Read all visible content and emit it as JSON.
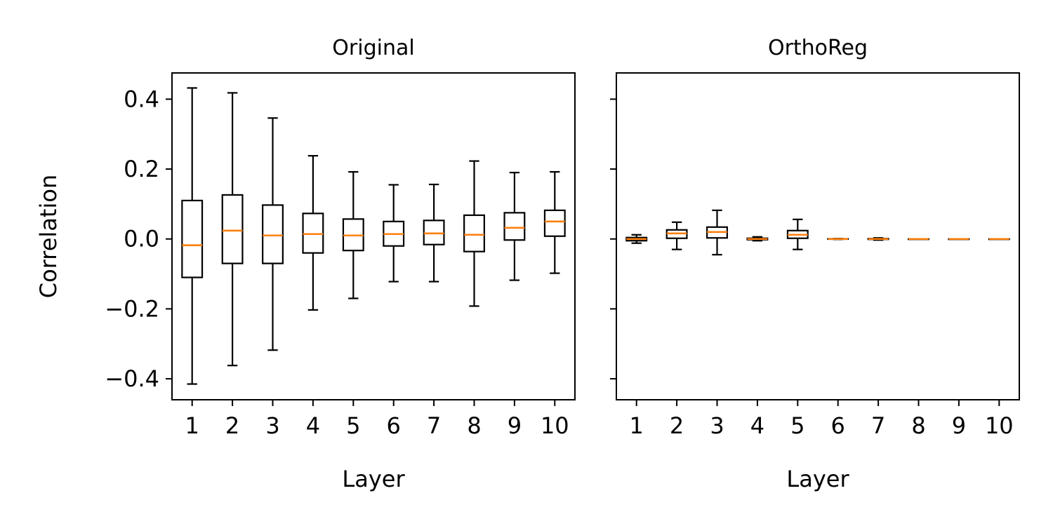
{
  "colors": {
    "box": "#000000",
    "median": "#ff7f0e",
    "frame": "#000000"
  },
  "y_ticks": [
    {
      "value": 0.4,
      "label": "0.4"
    },
    {
      "value": 0.2,
      "label": "0.2"
    },
    {
      "value": 0.0,
      "label": "0.0"
    },
    {
      "value": -0.2,
      "label": "−0.2"
    },
    {
      "value": -0.4,
      "label": "−0.4"
    }
  ],
  "chart_data": [
    {
      "type": "box",
      "title": "Original",
      "xlabel": "Layer",
      "ylabel": "Correlation",
      "ylim": [
        -0.46,
        0.475
      ],
      "show_y_tick_labels": true,
      "categories": [
        "1",
        "2",
        "3",
        "4",
        "5",
        "6",
        "7",
        "8",
        "9",
        "10"
      ],
      "boxes": [
        {
          "whisker_low": -0.415,
          "q1": -0.11,
          "median": -0.018,
          "q3": 0.11,
          "whisker_high": 0.432
        },
        {
          "whisker_low": -0.362,
          "q1": -0.07,
          "median": 0.024,
          "q3": 0.126,
          "whisker_high": 0.418
        },
        {
          "whisker_low": -0.318,
          "q1": -0.07,
          "median": 0.01,
          "q3": 0.097,
          "whisker_high": 0.346
        },
        {
          "whisker_low": -0.203,
          "q1": -0.04,
          "median": 0.014,
          "q3": 0.073,
          "whisker_high": 0.238
        },
        {
          "whisker_low": -0.17,
          "q1": -0.033,
          "median": 0.01,
          "q3": 0.057,
          "whisker_high": 0.192
        },
        {
          "whisker_low": -0.122,
          "q1": -0.02,
          "median": 0.014,
          "q3": 0.05,
          "whisker_high": 0.155
        },
        {
          "whisker_low": -0.122,
          "q1": -0.016,
          "median": 0.016,
          "q3": 0.053,
          "whisker_high": 0.156
        },
        {
          "whisker_low": -0.192,
          "q1": -0.036,
          "median": 0.012,
          "q3": 0.068,
          "whisker_high": 0.223
        },
        {
          "whisker_low": -0.118,
          "q1": -0.003,
          "median": 0.032,
          "q3": 0.075,
          "whisker_high": 0.19
        },
        {
          "whisker_low": -0.098,
          "q1": 0.008,
          "median": 0.05,
          "q3": 0.082,
          "whisker_high": 0.192
        }
      ]
    },
    {
      "type": "box",
      "title": "OrthoReg",
      "xlabel": "Layer",
      "ylabel": "",
      "ylim": [
        -0.46,
        0.475
      ],
      "show_y_tick_labels": false,
      "categories": [
        "1",
        "2",
        "3",
        "4",
        "5",
        "6",
        "7",
        "8",
        "9",
        "10"
      ],
      "boxes": [
        {
          "whisker_low": -0.012,
          "q1": -0.005,
          "median": 0.0,
          "q3": 0.004,
          "whisker_high": 0.012
        },
        {
          "whisker_low": -0.03,
          "q1": 0.002,
          "median": 0.016,
          "q3": 0.026,
          "whisker_high": 0.048
        },
        {
          "whisker_low": -0.045,
          "q1": 0.003,
          "median": 0.02,
          "q3": 0.034,
          "whisker_high": 0.082
        },
        {
          "whisker_low": -0.005,
          "q1": -0.002,
          "median": 0.0,
          "q3": 0.002,
          "whisker_high": 0.006
        },
        {
          "whisker_low": -0.03,
          "q1": 0.002,
          "median": 0.012,
          "q3": 0.024,
          "whisker_high": 0.056
        },
        {
          "whisker_low": -0.001,
          "q1": -0.0005,
          "median": 0.0,
          "q3": 0.0005,
          "whisker_high": 0.001
        },
        {
          "whisker_low": -0.003,
          "q1": -0.001,
          "median": 0.0,
          "q3": 0.001,
          "whisker_high": 0.003
        },
        {
          "whisker_low": 0.0,
          "q1": 0.0,
          "median": 0.0,
          "q3": 0.0,
          "whisker_high": 0.0
        },
        {
          "whisker_low": 0.0,
          "q1": 0.0,
          "median": 0.0,
          "q3": 0.0,
          "whisker_high": 0.0
        },
        {
          "whisker_low": 0.0,
          "q1": 0.0,
          "median": 0.0,
          "q3": 0.0,
          "whisker_high": 0.0
        }
      ]
    }
  ]
}
